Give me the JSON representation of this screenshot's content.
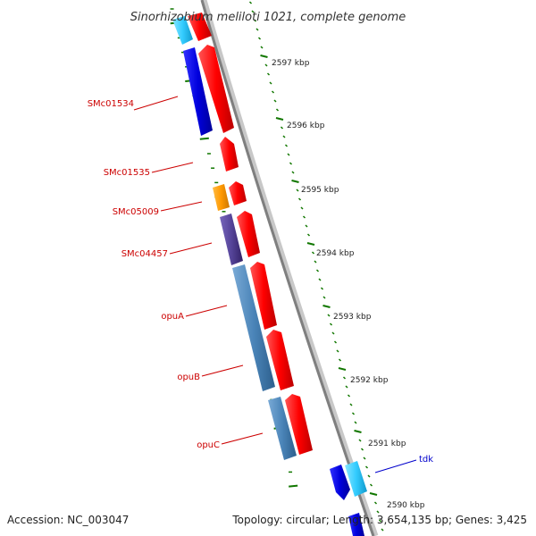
{
  "title": "Sinorhizobium meliloti 1021, complete genome",
  "footer": {
    "accession": "Accession: NC_003047",
    "topology": "Topology: circular; Length: 3,654,135 bp; Genes: 3,425"
  },
  "ruler": {
    "ticks": [
      "2597 kbp",
      "2596 kbp",
      "2595 kbp",
      "2594 kbp",
      "2593 kbp",
      "2592 kbp",
      "2591 kbp",
      "2590 kbp"
    ]
  },
  "genes": [
    {
      "name": "SMc01534",
      "color": "#cc0000"
    },
    {
      "name": "SMc01535",
      "color": "#cc0000"
    },
    {
      "name": "SMc05009",
      "color": "#cc0000"
    },
    {
      "name": "SMc04457",
      "color": "#cc0000"
    },
    {
      "name": "opuA",
      "color": "#cc0000"
    },
    {
      "name": "opuB",
      "color": "#cc0000"
    },
    {
      "name": "opuC",
      "color": "#cc0000"
    },
    {
      "name": "tdk",
      "color": "#0000cc"
    }
  ],
  "colors": {
    "forward_cds": "#ff0000",
    "reverse_cds": "#0000dd",
    "cyan_feature": "#33ccff",
    "orange_feature": "#ff9900",
    "purple_feature": "#554499",
    "steel_feature": "#4a84b8",
    "backbone": "#8a8a8a",
    "tick_green": "#117700"
  }
}
